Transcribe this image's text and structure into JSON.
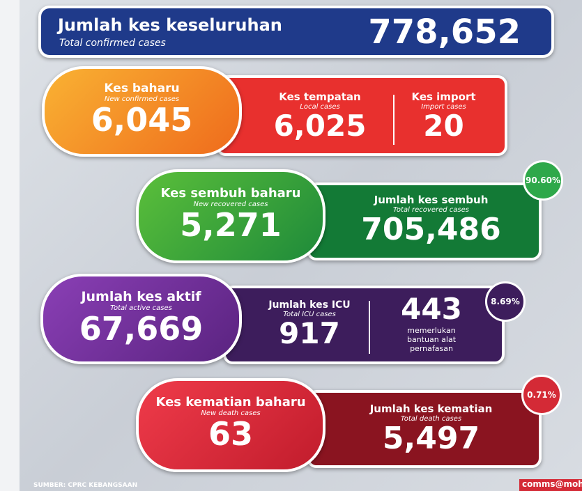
{
  "total": {
    "title": "Jumlah kes keseluruhan",
    "subtitle": "Total confirmed cases",
    "value": "778,652"
  },
  "new_cases": {
    "title": "Kes baharu",
    "subtitle": "New confirmed cases",
    "value": "6,045",
    "local": {
      "title": "Kes tempatan",
      "subtitle": "Local cases",
      "value": "6,025"
    },
    "import": {
      "title": "Kes import",
      "subtitle": "Import cases",
      "value": "20"
    }
  },
  "recovered": {
    "new": {
      "title": "Kes sembuh baharu",
      "subtitle": "New recovered cases",
      "value": "5,271"
    },
    "total": {
      "title": "Jumlah kes sembuh",
      "subtitle": "Total recovered cases",
      "value": "705,486"
    },
    "badge": "90.60%"
  },
  "active": {
    "title": "Jumlah kes aktif",
    "subtitle": "Total active cases",
    "value": "67,669",
    "icu": {
      "title": "Jumlah kes ICU",
      "subtitle": "Total ICU cases",
      "value": "917"
    },
    "ventilator": {
      "value": "443",
      "label": "memerlukan bantuan alat pernafasan"
    },
    "badge": "8.69%"
  },
  "deaths": {
    "new": {
      "title": "Kes kematian baharu",
      "subtitle": "New death cases",
      "value": "63"
    },
    "total": {
      "title": "Jumlah kes kematian",
      "subtitle": "Total death cases",
      "value": "5,497"
    },
    "badge": "0.71%"
  },
  "footer": {
    "source": "SUMBER: CPRC KEBANGSAAN",
    "credit": "comms@moh"
  }
}
